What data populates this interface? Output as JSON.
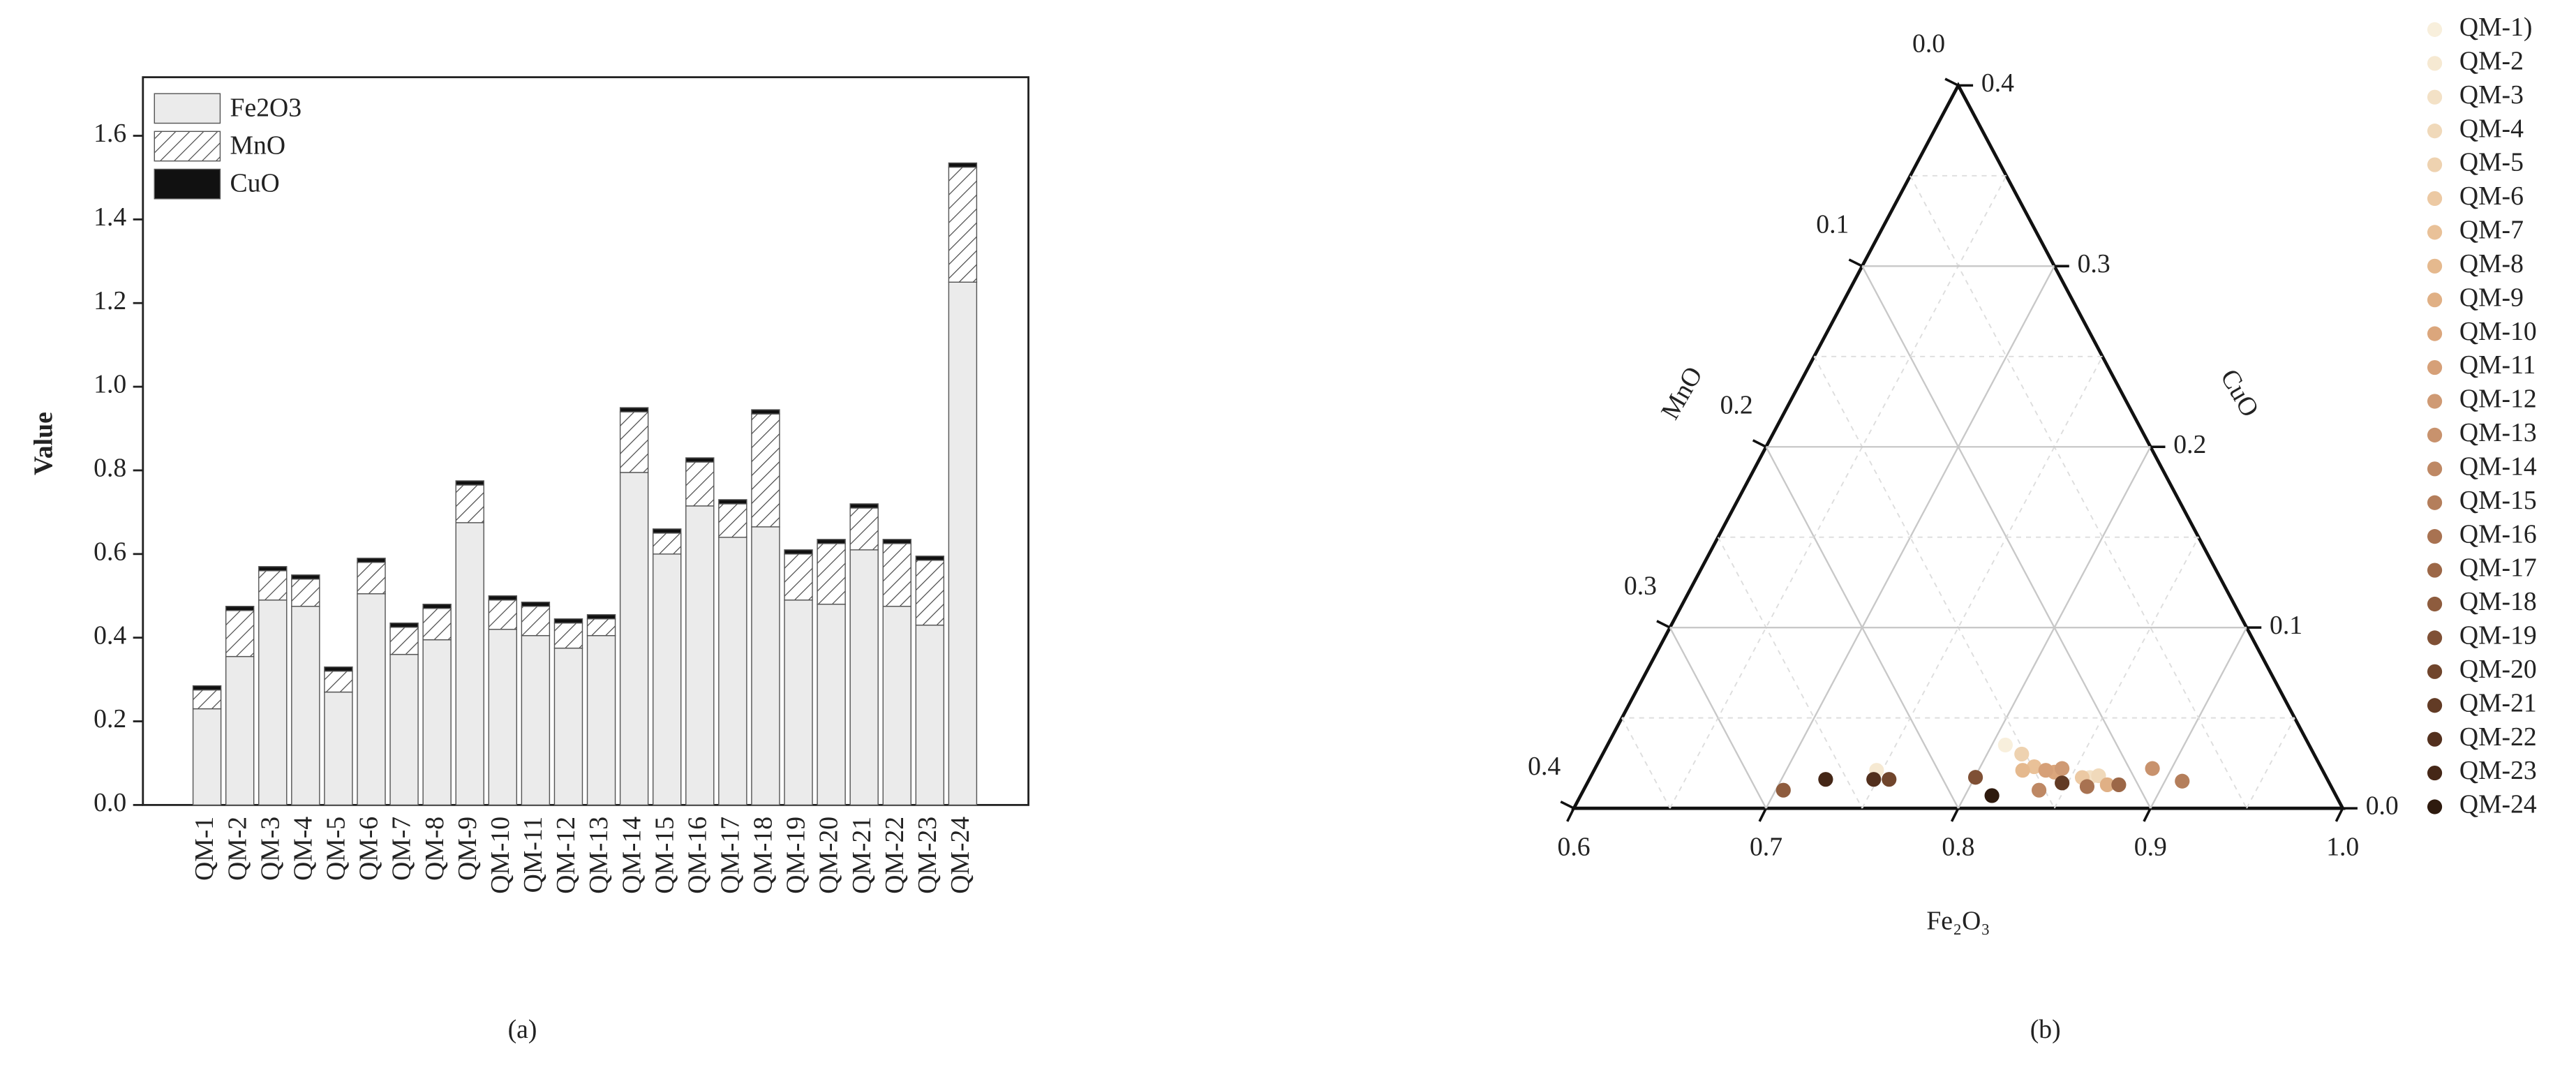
{
  "chart_data": [
    {
      "type": "bar",
      "stacked": true,
      "panel_label": "(a)",
      "ylabel": "Value",
      "legend": "upper left",
      "categories": [
        "QM-1",
        "QM-2",
        "QM-3",
        "QM-4",
        "QM-5",
        "QM-6",
        "QM-7",
        "QM-8",
        "QM-9",
        "QM-10",
        "QM-11",
        "QM-12",
        "QM-13",
        "QM-14",
        "QM-15",
        "QM-16",
        "QM-17",
        "QM-18",
        "QM-19",
        "QM-20",
        "QM-21",
        "QM-22",
        "QM-23",
        "QM-24"
      ],
      "series": [
        {
          "name": "Fe2O3",
          "color": "#ebebeb",
          "values": [
            0.23,
            0.355,
            0.49,
            0.475,
            0.27,
            0.505,
            0.36,
            0.395,
            0.675,
            0.42,
            0.405,
            0.375,
            0.405,
            0.795,
            0.6,
            0.715,
            0.64,
            0.665,
            0.49,
            0.48,
            0.61,
            0.475,
            0.43,
            1.25
          ]
        },
        {
          "name": "MnO",
          "color": "#ffffff",
          "hatch": true,
          "values": [
            0.045,
            0.11,
            0.07,
            0.065,
            0.05,
            0.075,
            0.065,
            0.075,
            0.09,
            0.07,
            0.07,
            0.06,
            0.04,
            0.145,
            0.05,
            0.105,
            0.08,
            0.27,
            0.11,
            0.145,
            0.1,
            0.15,
            0.155,
            0.275
          ]
        },
        {
          "name": "CuO",
          "color": "#111111",
          "values": [
            0.01,
            0.01,
            0.01,
            0.01,
            0.01,
            0.01,
            0.01,
            0.01,
            0.01,
            0.01,
            0.01,
            0.01,
            0.01,
            0.01,
            0.01,
            0.01,
            0.01,
            0.01,
            0.01,
            0.01,
            0.01,
            0.01,
            0.01,
            0.01
          ]
        }
      ],
      "ylim": [
        0,
        1.74
      ],
      "yticks": [
        {
          "value": 0,
          "label": "0.0"
        },
        0.2,
        0.4,
        0.6,
        0.8,
        {
          "value": 1,
          "label": "1.0"
        },
        1.2,
        1.4,
        1.6
      ]
    },
    {
      "type": "ternary",
      "panel_label": "(b)",
      "grid": true,
      "axes": [
        {
          "name": "Fe₂O₃",
          "lim": [
            0.6,
            1.0
          ],
          "ticks": [
            0.6,
            0.7,
            0.8,
            0.9,
            {
              "value": 1,
              "label": "1.0"
            }
          ]
        },
        {
          "name": "MnO",
          "lim": [
            0,
            0.4
          ],
          "ticks": [
            {
              "value": 0,
              "label": "0.0"
            },
            0.1,
            0.2,
            0.3,
            0.4
          ]
        },
        {
          "name": "CuO",
          "lim": [
            0,
            0.4
          ],
          "ticks": [
            0.4,
            0.3,
            0.2,
            0.1,
            {
              "value": 0,
              "label": "0.0"
            }
          ]
        }
      ],
      "series": [
        {
          "name": "QM-1)",
          "color": "#f8efdc",
          "values": [
            0.807,
            0.158,
            0.035
          ]
        },
        {
          "name": "QM-2",
          "color": "#f6e9d2",
          "values": [
            0.747,
            0.232,
            0.021
          ]
        },
        {
          "name": "QM-3",
          "color": "#f3e1c6",
          "values": [
            0.86,
            0.123,
            0.017
          ]
        },
        {
          "name": "QM-4",
          "color": "#f0d9ba",
          "values": [
            0.864,
            0.118,
            0.018
          ]
        },
        {
          "name": "QM-5",
          "color": "#eed2b0",
          "values": [
            0.818,
            0.152,
            0.03
          ]
        },
        {
          "name": "QM-6",
          "color": "#ecc9a3",
          "values": [
            0.856,
            0.127,
            0.017
          ]
        },
        {
          "name": "QM-7",
          "color": "#e9c198",
          "values": [
            0.828,
            0.149,
            0.023
          ]
        },
        {
          "name": "QM-8",
          "color": "#e5b98e",
          "values": [
            0.823,
            0.156,
            0.021
          ]
        },
        {
          "name": "QM-9",
          "color": "#e0b085",
          "values": [
            0.871,
            0.116,
            0.013
          ]
        },
        {
          "name": "QM-10",
          "color": "#dba67c",
          "values": [
            0.84,
            0.14,
            0.02
          ]
        },
        {
          "name": "QM-11",
          "color": "#d6a078",
          "values": [
            0.835,
            0.144,
            0.021
          ]
        },
        {
          "name": "QM-12",
          "color": "#cf9a74",
          "values": [
            0.843,
            0.135,
            0.022
          ]
        },
        {
          "name": "QM-13",
          "color": "#c8926d",
          "values": [
            0.89,
            0.088,
            0.022
          ]
        },
        {
          "name": "QM-14",
          "color": "#be8864",
          "values": [
            0.837,
            0.153,
            0.01
          ]
        },
        {
          "name": "QM-15",
          "color": "#b47e5b",
          "values": [
            0.909,
            0.076,
            0.015
          ]
        },
        {
          "name": "QM-16",
          "color": "#a87251",
          "values": [
            0.861,
            0.127,
            0.012
          ]
        },
        {
          "name": "QM-17",
          "color": "#9c6747",
          "values": [
            0.877,
            0.11,
            0.013
          ]
        },
        {
          "name": "QM-18",
          "color": "#8e5c3e",
          "values": [
            0.704,
            0.286,
            0.01
          ]
        },
        {
          "name": "QM-19",
          "color": "#7f5035",
          "values": [
            0.803,
            0.18,
            0.016
          ]
        },
        {
          "name": "QM-20",
          "color": "#70452c",
          "values": [
            0.756,
            0.228,
            0.016
          ]
        },
        {
          "name": "QM-21",
          "color": "#623b25",
          "values": [
            0.847,
            0.139,
            0.014
          ]
        },
        {
          "name": "QM-22",
          "color": "#53301e",
          "values": [
            0.748,
            0.236,
            0.016
          ]
        },
        {
          "name": "QM-23",
          "color": "#452717",
          "values": [
            0.723,
            0.261,
            0.016
          ]
        },
        {
          "name": "QM-24",
          "color": "#2e1a0e",
          "values": [
            0.814,
            0.179,
            0.007
          ]
        }
      ]
    }
  ]
}
